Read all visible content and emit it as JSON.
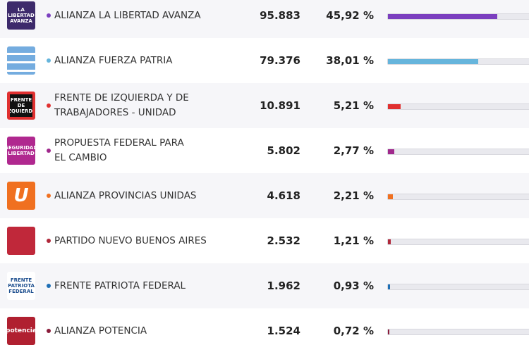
{
  "rows": [
    {
      "logo_text": "LA LIBERTAD AVANZA",
      "logo_color": "#3d2a6b",
      "name": [
        "ALIANZA LA LIBERTAD AVANZA"
      ],
      "color": "#7b3fbf",
      "votes": "95.883",
      "percent": {
        "value": 45.92,
        "label": "45,92 %"
      }
    },
    {
      "logo_color": "#ffffff",
      "name": [
        "ALIANZA FUERZA PATRIA"
      ],
      "color": "#66b5dc",
      "votes": "79.376",
      "percent": {
        "value": 38.01,
        "label": "38,01 %"
      }
    },
    {
      "logo_text": "FRENTE DE IZQUIERDA",
      "logo_color": "#e03030",
      "name": [
        "FRENTE DE IZQUIERDA Y DE",
        "TRABAJADORES - UNIDAD"
      ],
      "color": "#e03030",
      "votes": "10.891",
      "percent": {
        "value": 5.21,
        "label": "5,21 %"
      }
    },
    {
      "logo_text": "SEGURIDAD LIBERTAD",
      "logo_color": "#b0288f",
      "name": [
        "PROPUESTA FEDERAL PARA",
        "EL CAMBIO"
      ],
      "color": "#a0288c",
      "votes": "5.802",
      "percent": {
        "value": 2.77,
        "label": "2,77 %"
      }
    },
    {
      "logo_text": "U",
      "logo_color": "#f07020",
      "name": [
        "ALIANZA PROVINCIAS UNIDAS"
      ],
      "color": "#f07020",
      "votes": "4.618",
      "percent": {
        "value": 2.21,
        "label": "2,21 %"
      }
    },
    {
      "logo_color": "#c0283a",
      "name": [
        "PARTIDO NUEVO BUENOS AIRES"
      ],
      "color": "#b0283a",
      "votes": "2.532",
      "percent": {
        "value": 1.21,
        "label": "1,21 %"
      }
    },
    {
      "logo_text": "FRENTE PATRIOTA FEDERAL",
      "logo_color": "#ffffff",
      "name": [
        "FRENTE PATRIOTA FEDERAL"
      ],
      "color": "#1e6fb5",
      "votes": "1.962",
      "percent": {
        "value": 0.93,
        "label": "0,93 %"
      }
    },
    {
      "logo_text": "potencia",
      "logo_color": "#b02030",
      "name": [
        "ALIANZA POTENCIA"
      ],
      "color": "#8a1c3a",
      "votes": "1.524",
      "percent": {
        "value": 0.72,
        "label": "0,72 %"
      }
    }
  ]
}
